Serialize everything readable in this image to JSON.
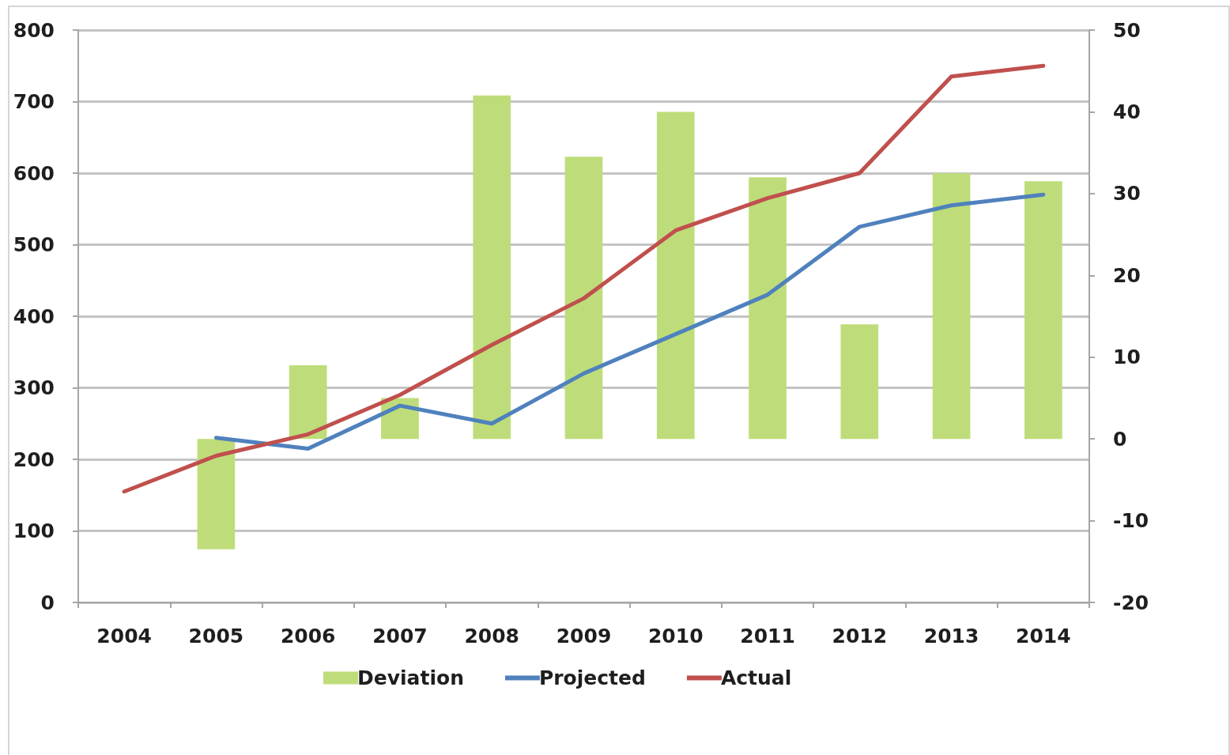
{
  "chart_data": {
    "type": "bar",
    "categories": [
      "2004",
      "2005",
      "2006",
      "2007",
      "2008",
      "2009",
      "2010",
      "2011",
      "2012",
      "2013",
      "2014"
    ],
    "series": [
      {
        "name": "Deviation",
        "axis": "y2",
        "color": "#bedd7a",
        "values": [
          null,
          -13.5,
          9,
          5,
          42,
          34.5,
          40,
          32,
          14,
          32.5,
          31.5
        ]
      },
      {
        "name": "Projected",
        "type": "line",
        "color": "#4f81bd",
        "values": [
          null,
          230,
          215,
          275,
          250,
          320,
          375,
          430,
          525,
          555,
          570
        ]
      },
      {
        "name": "Actual",
        "type": "line",
        "color": "#c0504d",
        "values": [
          155,
          205,
          235,
          290,
          360,
          425,
          520,
          565,
          600,
          735,
          750
        ]
      }
    ],
    "ylim": [
      0,
      800
    ],
    "yticks": [
      0,
      100,
      200,
      300,
      400,
      500,
      600,
      700,
      800
    ],
    "y2lim": [
      -20,
      50
    ],
    "y2ticks": [
      -20,
      -10,
      0,
      10,
      20,
      30,
      40,
      50
    ],
    "grid": "y",
    "legend": "bottom",
    "marker": "none",
    "line_style": "solid"
  }
}
